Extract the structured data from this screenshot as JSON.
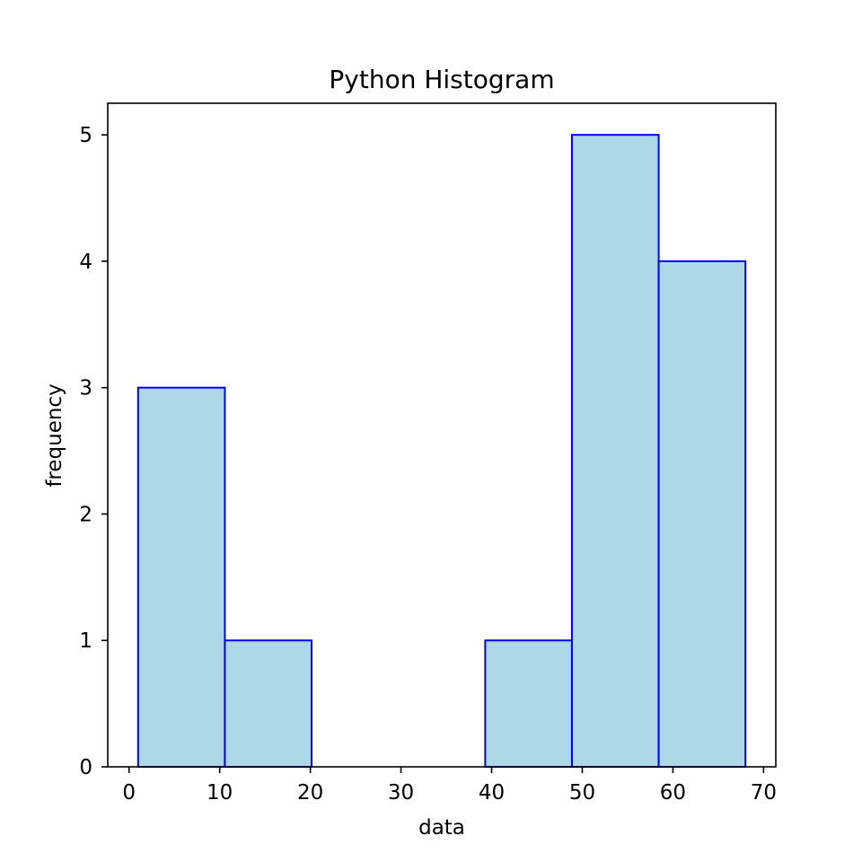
{
  "chart_data": {
    "type": "bar",
    "title": "Python Histogram",
    "xlabel": "data",
    "ylabel": "frequency",
    "bins": [
      {
        "start": 1.0,
        "end": 10.57,
        "count": 3
      },
      {
        "start": 10.57,
        "end": 20.14,
        "count": 1
      },
      {
        "start": 20.14,
        "end": 29.71,
        "count": 0
      },
      {
        "start": 29.71,
        "end": 39.29,
        "count": 0
      },
      {
        "start": 39.29,
        "end": 48.86,
        "count": 1
      },
      {
        "start": 48.86,
        "end": 58.43,
        "count": 5
      },
      {
        "start": 58.43,
        "end": 68.0,
        "count": 4
      }
    ],
    "xlim": [
      -2.35,
      71.35
    ],
    "ylim": [
      0,
      5.25
    ],
    "xticks": [
      "0",
      "10",
      "20",
      "30",
      "40",
      "50",
      "60",
      "70"
    ],
    "yticks": [
      "0",
      "1",
      "2",
      "3",
      "4",
      "5"
    ],
    "grid": false,
    "colors": {
      "bar_fill": "#add8e6",
      "bar_edge": "#0000ff",
      "axis": "#000000"
    }
  }
}
